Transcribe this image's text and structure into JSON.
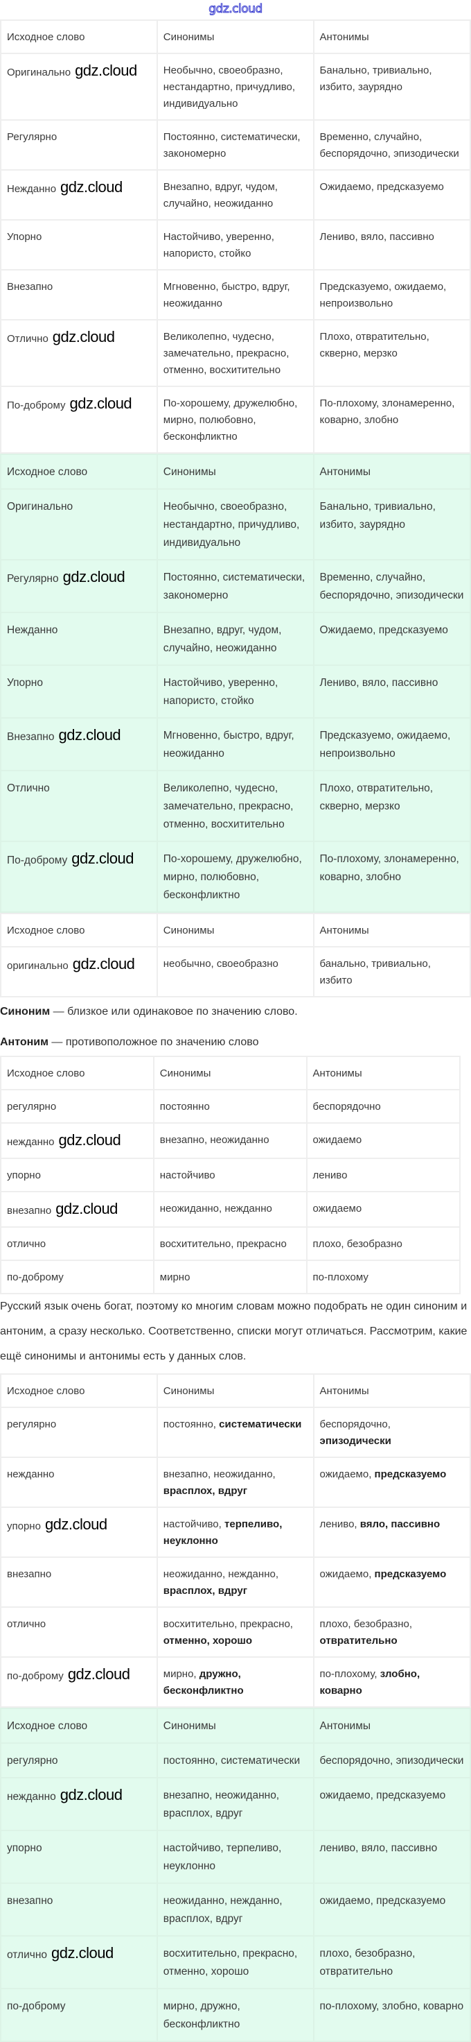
{
  "site_logo": "gdz.cloud",
  "watermark": "gdz.cloud",
  "headers_italic": [
    "Исходное слово",
    "Синонимы",
    "Антонимы"
  ],
  "headers": [
    "Исходное слово",
    "Синонимы",
    "Антонимы"
  ],
  "table1": {
    "rows": [
      [
        "Оригинально",
        "Необычно, своеобразно, нестандартно, причудливо, индивидуально",
        "Банально, тривиально, избито, заурядно"
      ],
      [
        "Регулярно",
        "Постоянно, систематически, закономерно",
        "Временно, случайно, беспорядочно, эпизодически"
      ],
      [
        "Нежданно",
        "Внезапно, вдруг, чудом, случайно, неожиданно",
        "Ожидаемо, предсказуемо"
      ],
      [
        "Упорно",
        "Настойчиво, уверенно, напористо, стойко",
        "Лениво, вяло, пассивно"
      ],
      [
        "Внезапно",
        "Мгновенно, быстро, вдруг, неожиданно",
        "Предсказуемо, ожидаемо, непроизвольно"
      ],
      [
        "Отлично",
        "Великолепно, чудесно, замечательно, прекрасно, отменно, восхитительно",
        "Плохо, отвратительно, скверно, мерзко"
      ],
      [
        "По-доброму",
        "По-хорошему, дружелюбно, мирно, полюбовно, бесконфликтно",
        "По-плохому, злонамеренно, коварно, злобно"
      ]
    ]
  },
  "table2": {
    "rows": [
      [
        "Оригинально",
        "Необычно, своеобразно, нестандартно, причудливо, индивидуально",
        "Банально, тривиально, избито, заурядно"
      ],
      [
        "Регулярно",
        "Постоянно, систематически, закономерно",
        "Временно, случайно, беспорядочно, эпизодически"
      ],
      [
        "Нежданно",
        "Внезапно, вдруг, чудом, случайно, неожиданно",
        "Ожидаемо, предсказуемо"
      ],
      [
        "Упорно",
        "Настойчиво, уверенно, напористо, стойко",
        "Лениво, вяло, пассивно"
      ],
      [
        "Внезапно",
        "Мгновенно, быстро, вдруг, неожиданно",
        "Предсказуемо, ожидаемо, непроизвольно"
      ],
      [
        "Отлично",
        "Великолепно, чудесно, замечательно, прекрасно, отменно, восхитительно",
        "Плохо, отвратительно, скверно, мерзко"
      ],
      [
        "По-доброму",
        "По-хорошему, дружелюбно, мирно, полюбовно, бесконфликтно",
        "По-плохому, злонамеренно, коварно, злобно"
      ]
    ]
  },
  "table3": {
    "rows": [
      [
        "оригинально",
        "необычно, своеобразно",
        "банально, тривиально, избито"
      ]
    ]
  },
  "definitions": {
    "synonym_term": "Синоним",
    "synonym_text": " — близкое или одинаковое по значению слово.",
    "antonym_term": "Антоним",
    "antonym_text": " — противоположное по значению слово"
  },
  "table4": {
    "rows": [
      [
        "регулярно",
        "постоянно",
        "беспорядочно"
      ],
      [
        "нежданно",
        "внезапно, неожиданно",
        "ожидаемо"
      ],
      [
        "упорно",
        "настойчиво",
        "лениво"
      ],
      [
        "внезапно",
        "неожиданно, нежданно",
        "ожидаемо"
      ],
      [
        "отлично",
        "восхитительно, прекрасно",
        "плохо, безобразно"
      ],
      [
        "по-доброму",
        "мирно",
        "по-плохому"
      ]
    ]
  },
  "paragraph": "Русский язык очень богат, поэтому ко многим словам можно подобрать не один синоним и антоним, а сразу несколько. Соответственно, списки могут отличаться. Рассмотрим, какие ещё синонимы и антонимы есть у данных слов.",
  "table5": {
    "rows": [
      [
        "регулярно",
        {
          "text": "постоянно, ",
          "bold": "систематически"
        },
        {
          "text": "беспорядочно, ",
          "bold": "эпизодически"
        }
      ],
      [
        "нежданно",
        {
          "text": "внезапно, неожиданно, ",
          "bold": "врасплох, вдруг"
        },
        {
          "text": "ожидаемо, ",
          "bold": "предсказуемо"
        }
      ],
      [
        "упорно",
        {
          "text": "настойчиво, ",
          "bold": "терпеливо, неуклонно"
        },
        {
          "text": "лениво, ",
          "bold": "вяло, пассивно"
        }
      ],
      [
        "внезапно",
        {
          "text": "неожиданно, нежданно, ",
          "bold": "врасплох, вдруг"
        },
        {
          "text": "ожидаемо, ",
          "bold": "предсказуемо"
        }
      ],
      [
        "отлично",
        {
          "text": "восхитительно, прекрасно, ",
          "bold": "отменно, хорошо"
        },
        {
          "text": "плохо, безобразно, ",
          "bold": "отвратительно"
        }
      ],
      [
        "по-доброму",
        {
          "text": "мирно, ",
          "bold": "дружно, бесконфликтно"
        },
        {
          "text": "по-плохому, ",
          "bold": "злобно, коварно"
        }
      ]
    ]
  },
  "table6": {
    "rows": [
      [
        "регулярно",
        "постоянно, систематически",
        "беспорядочно, эпизодически"
      ],
      [
        "нежданно",
        "внезапно, неожиданно, врасплох, вдруг",
        "ожидаемо, предсказуемо"
      ],
      [
        "упорно",
        "настойчиво, терпеливо, неуклонно",
        "лениво, вяло, пассивно"
      ],
      [
        "внезапно",
        "неожиданно, нежданно, врасплох, вдруг",
        "ожидаемо, предсказуемо"
      ],
      [
        "отлично",
        "восхитительно, прекрасно, отменно, хорошо",
        "плохо, безобразно, отвратительно"
      ],
      [
        "по-доброму",
        "мирно, дружно, бесконфликтно",
        "по-плохому, злобно, коварно"
      ]
    ]
  },
  "colors": {
    "green_bg": "#e2fbee",
    "logo_blue": "#3b3fd0",
    "border": "#eeeeee"
  }
}
